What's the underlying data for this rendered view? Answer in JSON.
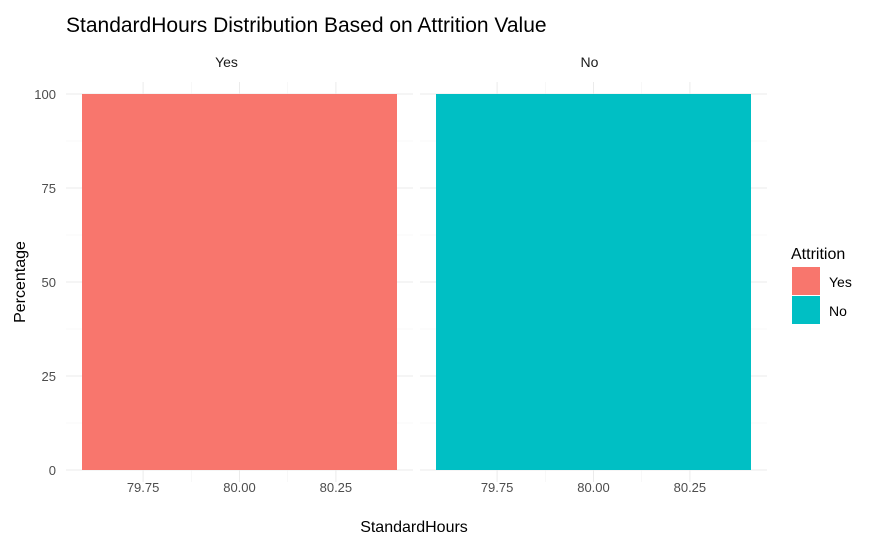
{
  "chart_data": {
    "type": "bar",
    "title": "StandardHours Distribution Based on Attrition Value",
    "xlabel": "StandardHours",
    "ylabel": "Percentage",
    "xlim": [
      79.55,
      80.45
    ],
    "ylim": [
      0,
      100
    ],
    "x_ticks": [
      "79.75",
      "80.00",
      "80.25"
    ],
    "x_tick_values": [
      79.75,
      80.0,
      80.25
    ],
    "y_ticks": [
      "0",
      "25",
      "50",
      "75",
      "100"
    ],
    "y_tick_values": [
      0,
      25,
      50,
      75,
      100
    ],
    "grid": true,
    "legend": {
      "title": "Attrition",
      "position": "right"
    },
    "facets": [
      {
        "label": "Yes",
        "series": "Yes",
        "color": "#F8766D",
        "x": 80,
        "value": 100
      },
      {
        "label": "No",
        "series": "No",
        "color": "#00BFC4",
        "x": 80,
        "value": 100
      }
    ],
    "series": [
      {
        "name": "Yes",
        "color": "#F8766D",
        "x": [
          80
        ],
        "values": [
          100
        ]
      },
      {
        "name": "No",
        "color": "#00BFC4",
        "x": [
          80
        ],
        "values": [
          100
        ]
      }
    ]
  }
}
